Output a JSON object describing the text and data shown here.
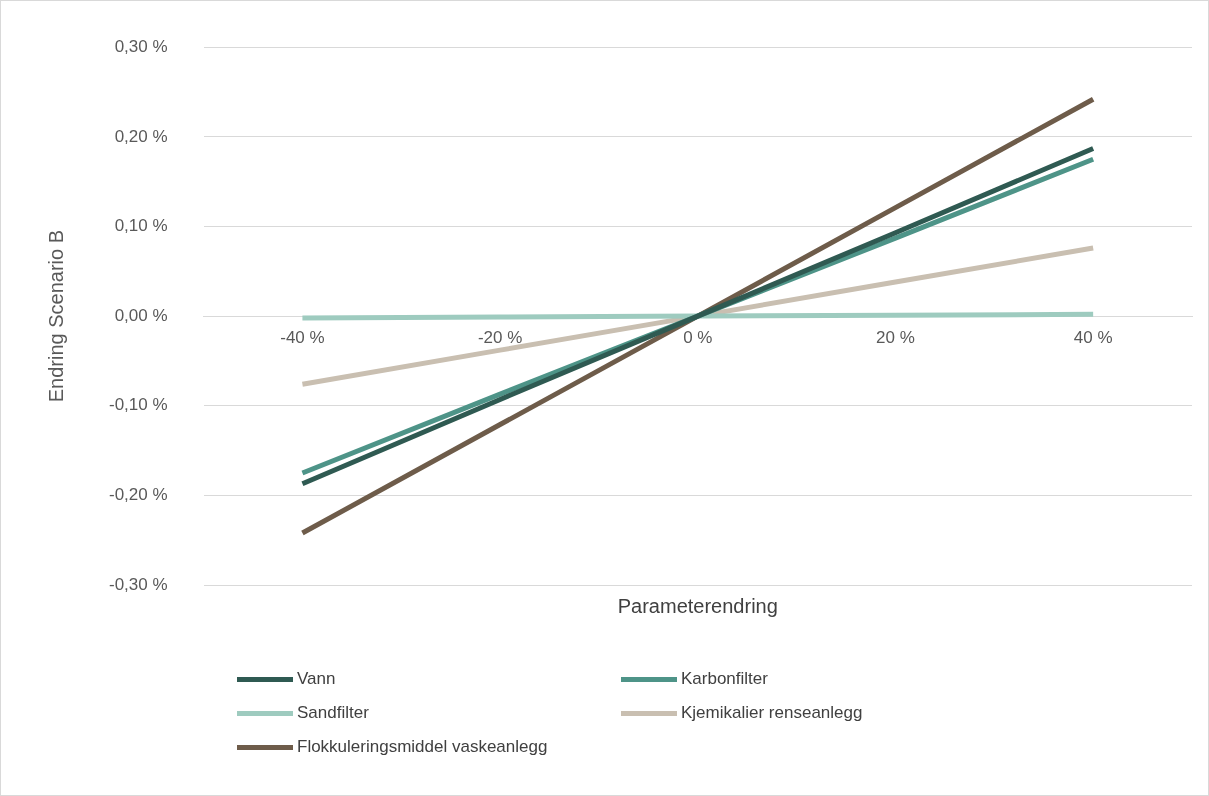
{
  "chart_data": {
    "type": "line",
    "xlabel": "Parameterendring",
    "ylabel": "Endring Scenario B",
    "categories": [
      "-40 %",
      "-20 %",
      "0 %",
      "20 %",
      "40 %"
    ],
    "series": [
      {
        "name": "Vann",
        "color": "#2f5a52",
        "values": [
          -0.187,
          -0.093,
          0,
          0.093,
          0.187
        ]
      },
      {
        "name": "Karbonfilter",
        "color": "#4e9488",
        "values": [
          -0.175,
          -0.087,
          0,
          0.087,
          0.175
        ]
      },
      {
        "name": "Sandfilter",
        "color": "#9ecbbf",
        "values": [
          -0.002,
          -0.001,
          0,
          0.001,
          0.002
        ]
      },
      {
        "name": "Kjemikalier renseanlegg",
        "color": "#c9bfb1",
        "values": [
          -0.076,
          -0.038,
          0,
          0.038,
          0.076
        ]
      },
      {
        "name": "Flokkuleringsmiddel vaskeanlegg",
        "color": "#6e5c4a",
        "values": [
          -0.242,
          -0.121,
          0,
          0.121,
          0.242
        ]
      }
    ],
    "ylim": [
      -0.3,
      0.3
    ],
    "yticks": [
      {
        "value": -0.3,
        "label": "-0,30 %"
      },
      {
        "value": -0.2,
        "label": "-0,20 %"
      },
      {
        "value": -0.1,
        "label": "-0,10 %"
      },
      {
        "value": 0,
        "label": "0,00 %"
      },
      {
        "value": 0.1,
        "label": "0,10 %"
      },
      {
        "value": 0.2,
        "label": "0,20 %"
      },
      {
        "value": 0.3,
        "label": "0,30 %"
      }
    ],
    "grid": "y",
    "legend": "bottom",
    "marker": "none",
    "line_style": "solid"
  }
}
